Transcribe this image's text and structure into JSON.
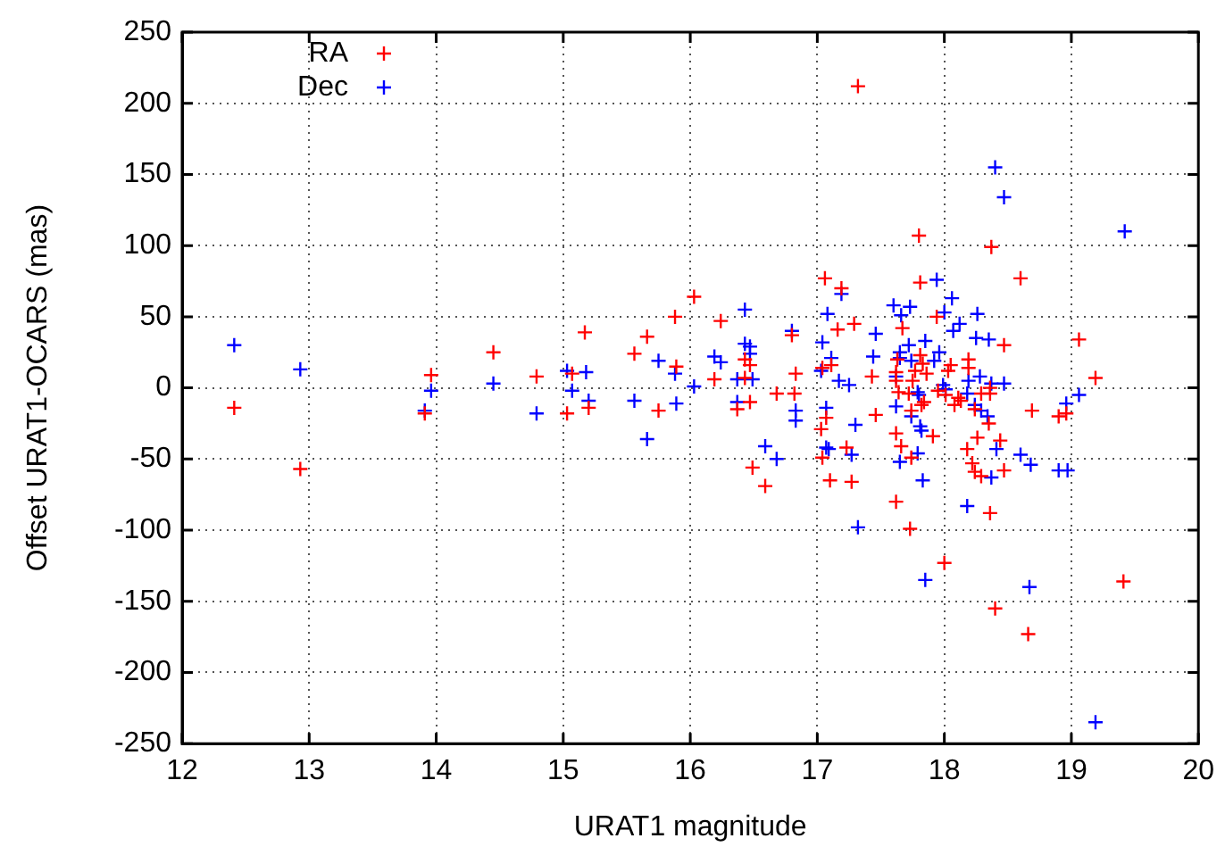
{
  "chart_data": {
    "type": "scatter",
    "xlabel": "URAT1 magnitude",
    "ylabel": "Offset URAT1-OCARS (mas)",
    "xlim": [
      12,
      20
    ],
    "xticks": [
      12,
      13,
      14,
      15,
      16,
      17,
      18,
      19,
      20
    ],
    "ylim": [
      -250,
      250
    ],
    "yticks": [
      -250,
      -200,
      -150,
      -100,
      -50,
      0,
      50,
      100,
      150,
      200,
      250
    ],
    "grid": true,
    "legend": "top left",
    "marker": "cross",
    "series": [
      {
        "name": "RA",
        "color": "#ff0000",
        "x": [
          12.41,
          12.93,
          13.91,
          13.96,
          14.45,
          14.79,
          15.03,
          15.07,
          15.17,
          15.2,
          16.03,
          15.88,
          16.24,
          15.66,
          15.56,
          15.89,
          16.43,
          16.47,
          16.19,
          16.43,
          16.8,
          16.83,
          15.75,
          16.37,
          16.47,
          16.68,
          16.82,
          16.49,
          16.59,
          17.8,
          18.37,
          17.06,
          17.19,
          17.81,
          18.6,
          17.94,
          17.16,
          17.29,
          17.67,
          18.47,
          17.81,
          17.11,
          17.04,
          17.63,
          17.83,
          17.77,
          17.86,
          17.62,
          17.62,
          18.05,
          18.03,
          18.19,
          18.19,
          17.43,
          17.75,
          18.36,
          17.64,
          17.72,
          17.95,
          18.01,
          18.11,
          18.13,
          18.29,
          18.36,
          18.08,
          17.84,
          17.82,
          17.74,
          18.24,
          18.35,
          18.69,
          17.07,
          17.46,
          17.03,
          17.62,
          17.91,
          18.26,
          18.44,
          17.66,
          17.23,
          18.18,
          17.04,
          17.74,
          18.22,
          18.24,
          18.29,
          18.47,
          17.1,
          17.27,
          17.62,
          18.36,
          17.32,
          17.73,
          18.0,
          19.41,
          18.4,
          18.66,
          19.06,
          19.19,
          18.9,
          18.96
        ],
        "values": [
          -14,
          -57,
          -18,
          9,
          25,
          8,
          -18,
          10,
          39,
          -14,
          64,
          50,
          47,
          36,
          24,
          15,
          20,
          16,
          6,
          7,
          37,
          10,
          -16,
          -15,
          -10,
          -4,
          -4,
          -56,
          -69,
          107,
          99,
          77,
          70,
          74,
          77,
          50,
          41,
          45,
          42,
          30,
          23,
          16,
          14,
          20,
          17,
          12,
          10,
          11,
          5,
          16,
          12,
          20,
          14,
          8,
          5,
          0,
          -3,
          -4,
          -2,
          -5,
          -7,
          -9,
          -4,
          -4,
          -12,
          -10,
          -12,
          -16,
          -15,
          -25,
          -16,
          -21,
          -19,
          -29,
          -32,
          -34,
          -35,
          -37,
          -41,
          -42,
          -43,
          -49,
          -49,
          -53,
          -59,
          -62,
          -58,
          -65,
          -66,
          -80,
          -88,
          212,
          -99,
          -123,
          -136,
          -155,
          -173,
          34,
          7,
          -20,
          -18
        ]
      },
      {
        "name": "Dec",
        "color": "#0000ff",
        "x": [
          12.41,
          12.93,
          13.91,
          13.96,
          14.45,
          14.79,
          15.03,
          15.07,
          15.18,
          15.2,
          16.43,
          15.75,
          15.88,
          16.03,
          16.19,
          16.24,
          16.43,
          16.47,
          16.47,
          16.37,
          16.49,
          16.8,
          15.56,
          15.89,
          15.66,
          16.37,
          16.83,
          16.83,
          16.59,
          16.68,
          17.19,
          17.94,
          17.08,
          17.6,
          17.73,
          17.66,
          18.06,
          18.0,
          18.26,
          18.12,
          17.46,
          18.07,
          18.25,
          18.35,
          17.04,
          17.85,
          17.72,
          17.65,
          17.96,
          17.11,
          17.44,
          17.92,
          17.65,
          17.03,
          17.74,
          17.62,
          17.17,
          17.25,
          18.28,
          18.19,
          18.37,
          18.47,
          17.99,
          17.79,
          17.8,
          18.01,
          18.18,
          17.74,
          18.24,
          18.29,
          18.34,
          17.07,
          17.3,
          17.62,
          17.81,
          17.82,
          18.41,
          17.07,
          17.09,
          17.27,
          17.79,
          18.6,
          18.68,
          17.65,
          18.37,
          17.83,
          18.18,
          18.4,
          18.47,
          19.42,
          17.32,
          17.85,
          18.67,
          19.19,
          19.06,
          18.96,
          18.9,
          18.97
        ],
        "values": [
          30,
          13,
          -16,
          -2,
          3,
          -18,
          12,
          -2,
          11,
          -9,
          55,
          19,
          10,
          1,
          22,
          18,
          31,
          29,
          24,
          6,
          6,
          40,
          -9,
          -11,
          -36,
          -10,
          -16,
          -23,
          -41,
          -50,
          66,
          76,
          52,
          58,
          57,
          51,
          63,
          53,
          52,
          45,
          38,
          40,
          35,
          34,
          32,
          33,
          30,
          25,
          25,
          21,
          22,
          19,
          21,
          12,
          19,
          8,
          5,
          2,
          8,
          5,
          3,
          3,
          2,
          -3,
          -5,
          -1,
          -4,
          -20,
          -12,
          -16,
          -20,
          -14,
          -26,
          -13,
          -27,
          -30,
          -43,
          -42,
          -43,
          -47,
          -46,
          -47,
          -54,
          -52,
          -63,
          -65,
          -83,
          155,
          134,
          110,
          -98,
          -135,
          -140,
          -235,
          -5,
          -11,
          -58,
          -58
        ]
      }
    ]
  }
}
